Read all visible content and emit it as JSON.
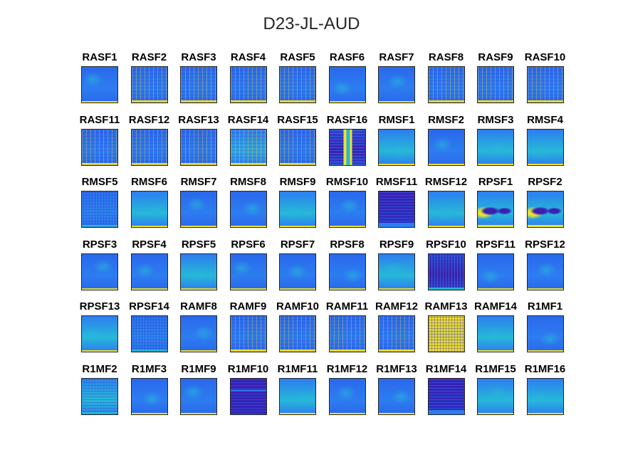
{
  "title": "D23-JL-AUD",
  "colors": {
    "low": "#3b1fb3",
    "mid": "#2d7df0",
    "cyan": "#26b8d8",
    "high": "#f0e02a",
    "border": "#262626"
  },
  "chart_data": {
    "type": "heatmap",
    "title": "D23-JL-AUD",
    "layout": "grid of 6 rows x 10 columns of small heatmap panels",
    "grid": false,
    "colormap": "parula",
    "panels": [
      {
        "label": "RASF1",
        "tone": "mid",
        "style": "smooth"
      },
      {
        "label": "RASF2",
        "tone": "mid",
        "style": "striped"
      },
      {
        "label": "RASF3",
        "tone": "mid",
        "style": "striped"
      },
      {
        "label": "RASF4",
        "tone": "mid",
        "style": "striped"
      },
      {
        "label": "RASF5",
        "tone": "mid",
        "style": "striped"
      },
      {
        "label": "RASF6",
        "tone": "mid",
        "style": "smooth"
      },
      {
        "label": "RASF7",
        "tone": "mid",
        "style": "smooth"
      },
      {
        "label": "RASF8",
        "tone": "mid",
        "style": "striped"
      },
      {
        "label": "RASF9",
        "tone": "mid",
        "style": "striped"
      },
      {
        "label": "RASF10",
        "tone": "mid",
        "style": "striped"
      },
      {
        "label": "RASF11",
        "tone": "mid",
        "style": "striped"
      },
      {
        "label": "RASF12",
        "tone": "mid",
        "style": "striped"
      },
      {
        "label": "RASF13",
        "tone": "mid",
        "style": "striped"
      },
      {
        "label": "RASF14",
        "tone": "bright",
        "style": "striped"
      },
      {
        "label": "RASF15",
        "tone": "mid",
        "style": "striped"
      },
      {
        "label": "RASF16",
        "tone": "dark",
        "style": "column-bright"
      },
      {
        "label": "RMSF1",
        "tone": "cyan",
        "style": "smooth"
      },
      {
        "label": "RMSF2",
        "tone": "mid",
        "style": "smooth"
      },
      {
        "label": "RMSF3",
        "tone": "cyan",
        "style": "smooth"
      },
      {
        "label": "RMSF4",
        "tone": "cyan",
        "style": "smooth"
      },
      {
        "label": "RMSF5",
        "tone": "mid",
        "style": "speckled"
      },
      {
        "label": "RMSF6",
        "tone": "cyan",
        "style": "smooth"
      },
      {
        "label": "RMSF7",
        "tone": "mid",
        "style": "smooth"
      },
      {
        "label": "RMSF8",
        "tone": "mid",
        "style": "smooth"
      },
      {
        "label": "RMSF9",
        "tone": "cyan",
        "style": "smooth"
      },
      {
        "label": "RMSF10",
        "tone": "mid",
        "style": "smooth"
      },
      {
        "label": "RMSF11",
        "tone": "dark",
        "style": "banded-dark"
      },
      {
        "label": "RMSF12",
        "tone": "cyan",
        "style": "smooth"
      },
      {
        "label": "RPSF1",
        "tone": "cyan",
        "style": "blobs"
      },
      {
        "label": "RPSF2",
        "tone": "cyan",
        "style": "blobs"
      },
      {
        "label": "RPSF3",
        "tone": "mid",
        "style": "smooth"
      },
      {
        "label": "RPSF4",
        "tone": "mid",
        "style": "smooth"
      },
      {
        "label": "RPSF5",
        "tone": "cyan",
        "style": "smooth"
      },
      {
        "label": "RPSF6",
        "tone": "mid",
        "style": "smooth"
      },
      {
        "label": "RPSF7",
        "tone": "mid",
        "style": "smooth"
      },
      {
        "label": "RPSF8",
        "tone": "mid",
        "style": "smooth"
      },
      {
        "label": "RPSF9",
        "tone": "cyan",
        "style": "smooth"
      },
      {
        "label": "RPSF10",
        "tone": "dark",
        "style": "speckled"
      },
      {
        "label": "RPSF11",
        "tone": "mid",
        "style": "smooth"
      },
      {
        "label": "RPSF12",
        "tone": "mid",
        "style": "smooth"
      },
      {
        "label": "RPSF13",
        "tone": "cyan",
        "style": "smooth"
      },
      {
        "label": "RPSF14",
        "tone": "mid",
        "style": "speckled"
      },
      {
        "label": "RAMF8",
        "tone": "mid",
        "style": "smooth"
      },
      {
        "label": "RAMF9",
        "tone": "mid",
        "style": "striped"
      },
      {
        "label": "RAMF10",
        "tone": "mid",
        "style": "striped"
      },
      {
        "label": "RAMF11",
        "tone": "mid",
        "style": "striped"
      },
      {
        "label": "RAMF12",
        "tone": "mid",
        "style": "striped"
      },
      {
        "label": "RAMF13",
        "tone": "bright",
        "style": "checker-bright"
      },
      {
        "label": "RAMF14",
        "tone": "cyan",
        "style": "smooth"
      },
      {
        "label": "R1MF1",
        "tone": "mid",
        "style": "smooth"
      },
      {
        "label": "R1MF2",
        "tone": "cyan",
        "style": "speckled"
      },
      {
        "label": "R1MF3",
        "tone": "mid",
        "style": "smooth"
      },
      {
        "label": "R1MF9",
        "tone": "mid",
        "style": "smooth"
      },
      {
        "label": "R1MF10",
        "tone": "dark",
        "style": "dark-band"
      },
      {
        "label": "R1MF11",
        "tone": "cyan",
        "style": "smooth"
      },
      {
        "label": "R1MF12",
        "tone": "mid",
        "style": "smooth"
      },
      {
        "label": "R1MF13",
        "tone": "mid",
        "style": "smooth"
      },
      {
        "label": "R1MF14",
        "tone": "dark",
        "style": "banded-dark"
      },
      {
        "label": "R1MF15",
        "tone": "cyan",
        "style": "smooth"
      },
      {
        "label": "R1MF16",
        "tone": "cyan",
        "style": "smooth"
      }
    ]
  }
}
